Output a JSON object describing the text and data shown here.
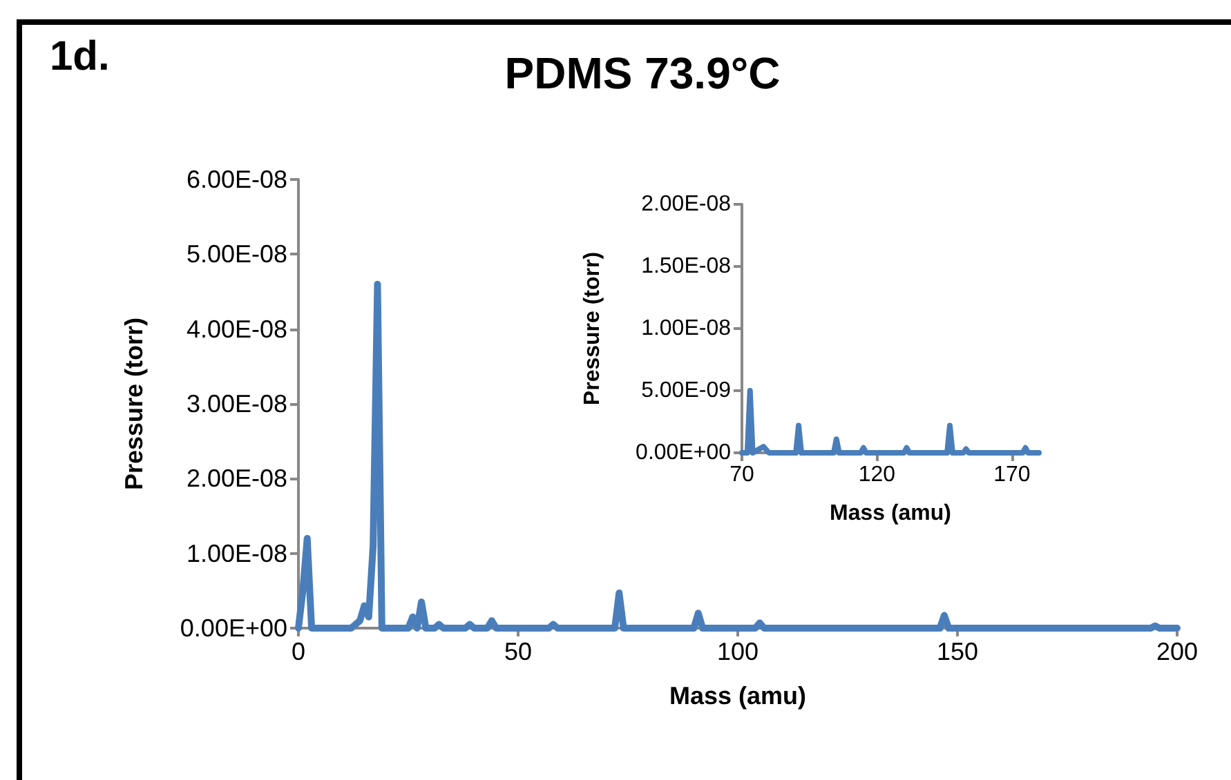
{
  "chart_data": [
    {
      "type": "line",
      "title": "PDMS 73.9°C",
      "xlabel": "Mass (amu)",
      "ylabel": "Pressure (torr)",
      "annotations": [
        "1d."
      ],
      "marker": "none",
      "line_style": "solid",
      "x": [
        0,
        1,
        2,
        3,
        12,
        14,
        15,
        16,
        17,
        18,
        19,
        25,
        26,
        27,
        28,
        29,
        31,
        32,
        33,
        38,
        39,
        40,
        43,
        44,
        45,
        57,
        58,
        59,
        72,
        73,
        74,
        90,
        91,
        92,
        104,
        105,
        106,
        146,
        147,
        148,
        194,
        195,
        196,
        200
      ],
      "series": [
        {
          "color": "#4a7ebb",
          "values": [
            0,
            5e-09,
            1.2e-08,
            0,
            0,
            1e-09,
            3e-09,
            1.5e-09,
            1.1e-08,
            4.6e-08,
            0,
            0,
            1.5e-09,
            0,
            3.5e-09,
            0,
            0,
            5e-10,
            0,
            0,
            5e-10,
            0,
            0,
            1e-09,
            0,
            0,
            5e-10,
            0,
            0,
            4.7e-09,
            0,
            0,
            2e-09,
            0,
            0,
            7e-10,
            0,
            0,
            1.7e-09,
            0,
            0,
            3e-10,
            0,
            0
          ]
        }
      ],
      "xlim": [
        0,
        200
      ],
      "xticks": [
        0,
        50,
        100,
        150,
        200
      ],
      "ylim": [
        0,
        6e-08
      ],
      "yticks": [
        {
          "value": 0,
          "label": "0.00E+00"
        },
        {
          "value": 1e-08,
          "label": "1.00E-08"
        },
        {
          "value": 2e-08,
          "label": "2.00E-08"
        },
        {
          "value": 3e-08,
          "label": "3.00E-08"
        },
        {
          "value": 4e-08,
          "label": "4.00E-08"
        },
        {
          "value": 5e-08,
          "label": "5.00E-08"
        },
        {
          "value": 6e-08,
          "label": "6.00E-08"
        }
      ]
    },
    {
      "type": "line",
      "xlabel": "Mass (amu)",
      "ylabel": "Pressure (torr)",
      "marker": "none",
      "line_style": "solid",
      "x": [
        70,
        72,
        73,
        74,
        78,
        80,
        90,
        91,
        92,
        104,
        105,
        106,
        114,
        115,
        116,
        130,
        131,
        132,
        146,
        147,
        148,
        152,
        153,
        154,
        174,
        175,
        176,
        180
      ],
      "series": [
        {
          "color": "#4a7ebb",
          "values": [
            0,
            0,
            5e-09,
            0,
            5e-10,
            0,
            0,
            2.2e-09,
            0,
            0,
            1.1e-09,
            0,
            0,
            4e-10,
            0,
            0,
            4e-10,
            0,
            0,
            2.2e-09,
            0,
            0,
            3e-10,
            0,
            0,
            4e-10,
            0,
            0
          ]
        }
      ],
      "xlim": [
        70,
        180
      ],
      "xticks": [
        70,
        120,
        170
      ],
      "ylim": [
        0,
        2e-08
      ],
      "yticks": [
        {
          "value": 0,
          "label": "0.00E+00"
        },
        {
          "value": 5e-09,
          "label": "5.00E-09"
        },
        {
          "value": 1e-08,
          "label": "1.00E-08"
        },
        {
          "value": 1.5e-08,
          "label": "1.50E-08"
        },
        {
          "value": 2e-08,
          "label": "2.00E-08"
        }
      ]
    }
  ]
}
